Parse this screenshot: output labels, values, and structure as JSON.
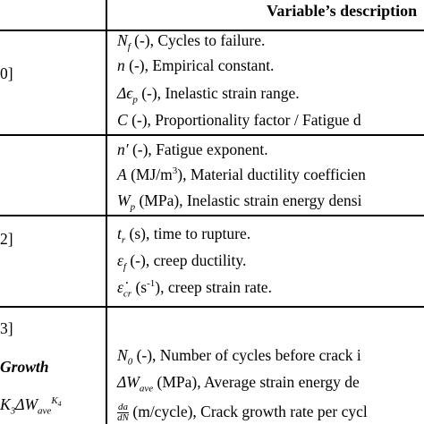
{
  "header": {
    "description_title": "Variable’s description"
  },
  "left_fragments": {
    "row1": "0]",
    "row3": "2]",
    "row4_ref": "3]",
    "row4_label": "Growth",
    "row4_formula_prefix": "K",
    "row4_formula_sub1": "3",
    "row4_formula_mid": "ΔW",
    "row4_formula_sub2": "ave",
    "row4_formula_sup": "K",
    "row4_formula_sup_sub": "4"
  },
  "rows": [
    {
      "items": [
        {
          "sym": "N",
          "sub": "f",
          "unit": " (-), ",
          "desc": "Cycles to failure."
        },
        {
          "sym": "n",
          "sub": "",
          "unit": " (-), ",
          "desc": "Empirical constant."
        },
        {
          "sym": "Δϵ",
          "sub": "p",
          "unit": " (-), ",
          "desc": "Inelastic strain range."
        },
        {
          "sym": "C",
          "sub": "",
          "unit": " (-), ",
          "desc": "Proportionality factor / Fatigue d"
        }
      ]
    },
    {
      "items": [
        {
          "sym": "n′",
          "sub": "",
          "unit": " (-), ",
          "desc": "Fatigue exponent."
        },
        {
          "sym": "A",
          "sub": "",
          "unit": " (MJ/m",
          "unit_sup": "3",
          "unit_end": "), ",
          "desc": "Material ductility coefficien"
        },
        {
          "sym": "W",
          "sub": "p",
          "unit": " (MPa), ",
          "desc": "Inelastic strain energy densi"
        }
      ]
    },
    {
      "items": [
        {
          "sym": "t",
          "sub": "r",
          "unit": " (s), ",
          "desc": "time to rupture."
        },
        {
          "sym": "ε",
          "sub": "f",
          "unit": " (-), ",
          "desc": "creep ductility."
        },
        {
          "sym": "ε̇",
          "sub": "cr",
          "unit": " (s",
          "unit_sup": "-1",
          "unit_end": "), ",
          "desc": "creep strain rate."
        }
      ]
    },
    {
      "items": [
        {
          "sym": "N",
          "sub": "0",
          "unit": " (-), ",
          "desc": "Number of cycles before crack i"
        },
        {
          "sym": "ΔW",
          "sub": "ave",
          "unit": " (MPa), ",
          "desc": "Average strain energy de"
        },
        {
          "frac_num": "da",
          "frac_den": "dN",
          "unit": " (m/cycle), ",
          "desc": "Crack growth rate per cycl"
        }
      ]
    }
  ]
}
